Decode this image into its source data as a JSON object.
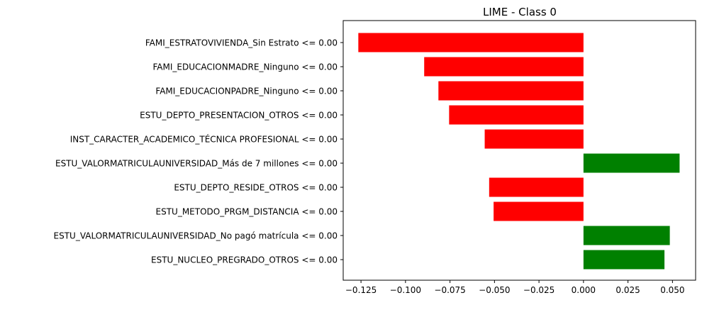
{
  "chart_data": {
    "type": "bar",
    "orientation": "horizontal",
    "title": "LIME - Class 0",
    "xlabel": "",
    "ylabel": "",
    "xlim": [
      -0.135,
      0.063
    ],
    "xticks": [
      -0.125,
      -0.1,
      -0.075,
      -0.05,
      -0.025,
      0.0,
      0.025,
      0.05
    ],
    "xtick_labels": [
      "−0.125",
      "−0.100",
      "−0.075",
      "−0.050",
      "−0.025",
      "0.000",
      "0.025",
      "0.050"
    ],
    "grid": false,
    "legend": "none",
    "categories": [
      "FAMI_ESTRATOVIVIENDA_Sin Estrato <= 0.00",
      "FAMI_EDUCACIONMADRE_Ninguno <= 0.00",
      "FAMI_EDUCACIONPADRE_Ninguno <= 0.00",
      "ESTU_DEPTO_PRESENTACION_OTROS <= 0.00",
      "INST_CARACTER_ACADEMICO_TÉCNICA PROFESIONAL <= 0.00",
      "ESTU_VALORMATRICULAUNIVERSIDAD_Más de 7 millones <= 0.00",
      "ESTU_DEPTO_RESIDE_OTROS <= 0.00",
      "ESTU_METODO_PRGM_DISTANCIA <= 0.00",
      "ESTU_VALORMATRICULAUNIVERSIDAD_No pagó matrícula <= 0.00",
      "ESTU_NUCLEO_PREGRADO_OTROS <= 0.00"
    ],
    "values": [
      -0.1265,
      -0.0895,
      -0.0815,
      -0.0755,
      -0.0555,
      0.054,
      -0.053,
      -0.0505,
      0.0485,
      0.0455
    ],
    "colors": {
      "positive": "#008000",
      "negative": "#ff0000"
    }
  }
}
